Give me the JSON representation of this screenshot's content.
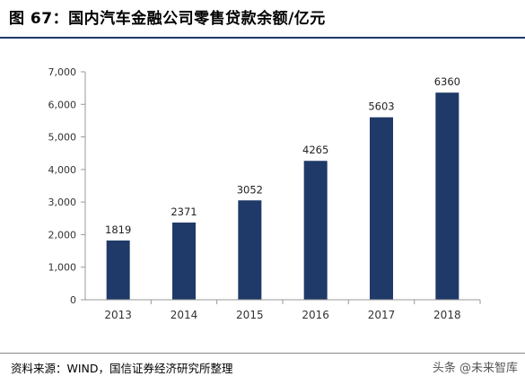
{
  "title": "图 67：国内汽车金融公司零售贷款余额/亿元",
  "source": "资料来源：WIND，国信证券经济研究所整理",
  "watermark": "头条 @未来智库",
  "colors": {
    "bar": "#1f3a68",
    "title_rule": "#1f3a68",
    "axis": "#999999"
  },
  "chart_data": {
    "type": "bar",
    "categories": [
      "2013",
      "2014",
      "2015",
      "2016",
      "2017",
      "2018"
    ],
    "values": [
      1819,
      2371,
      3052,
      4265,
      5603,
      6360
    ],
    "data_labels": [
      "1819",
      "2371",
      "3052",
      "4265",
      "5603",
      "6360"
    ],
    "ylim": [
      0,
      7000
    ],
    "yticks": [
      0,
      1000,
      2000,
      3000,
      4000,
      5000,
      6000,
      7000
    ],
    "ytick_labels": [
      "0",
      "1,000",
      "2,000",
      "3,000",
      "4,000",
      "5,000",
      "6,000",
      "7,000"
    ],
    "grid": false
  }
}
